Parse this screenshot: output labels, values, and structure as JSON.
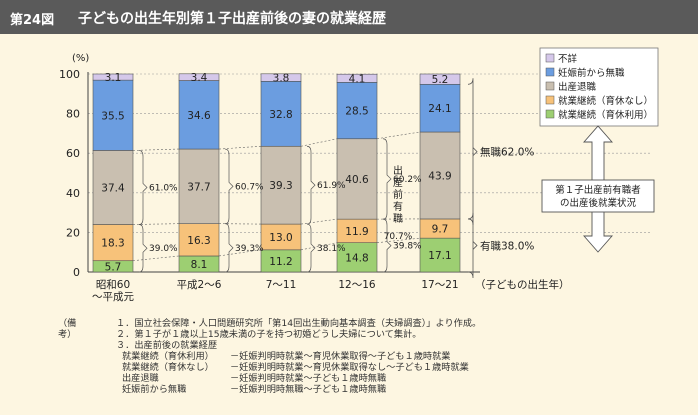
{
  "header": {
    "figure_tag": "第24図",
    "title": "子どもの出生年別第１子出産前後の妻の就業経歴"
  },
  "chart_data": {
    "type": "bar",
    "stacked": true,
    "y_unit_label": "(%)",
    "ylim": [
      0,
      100
    ],
    "yticks": [
      0,
      20,
      40,
      60,
      80,
      100
    ],
    "x_axis_label": "（子どもの出生年）",
    "categories": [
      "昭和60\n〜平成元",
      "平成2〜6",
      "7〜11",
      "12〜16",
      "17〜21"
    ],
    "series": [
      {
        "name": "就業継続（育休利用）",
        "color": "#9dcf72",
        "values": [
          5.7,
          8.1,
          11.2,
          14.8,
          17.1
        ]
      },
      {
        "name": "就業継続（育休なし）",
        "color": "#f7c27a",
        "values": [
          18.3,
          16.3,
          13.0,
          11.9,
          9.7
        ]
      },
      {
        "name": "出産退職",
        "color": "#c9bfb0",
        "values": [
          37.4,
          37.7,
          39.3,
          40.6,
          43.9
        ]
      },
      {
        "name": "妊娠前から無職",
        "color": "#6b9de0",
        "values": [
          35.5,
          34.6,
          32.8,
          28.5,
          24.1
        ]
      },
      {
        "name": "不詳",
        "color": "#d5c8ea",
        "values": [
          3.1,
          3.4,
          3.8,
          4.1,
          5.2
        ]
      }
    ],
    "legend_order": [
      "不詳",
      "妊娠前から無職",
      "出産退職",
      "就業継続（育休なし）",
      "就業継続（育休利用）"
    ],
    "legend_position": "top-right",
    "brace_labels": [
      {
        "upper": "61.0%",
        "lower": "39.0%"
      },
      {
        "upper": "60.7%",
        "lower": "39.3%"
      },
      {
        "upper": "61.9%",
        "lower": "38.1%"
      },
      {
        "upper": "60.2%",
        "lower": "39.8%"
      }
    ],
    "bar4_side_label": "出産前有職",
    "bar4_side_pct": "70.7%",
    "right_braces": [
      {
        "label": "無職62.0%"
      },
      {
        "label": "有職38.0%"
      }
    ],
    "arrow_box_label": "第１子出産前有職者の出産後就業状況"
  },
  "notes": {
    "header": "（備考）",
    "items": [
      "１．国立社会保障・人口問題研究所「第14回出生動向基本調査（夫婦調査）」より作成。",
      "２．第１子が１歳以上15歳未満の子を持つ初婚どうし夫婦について集計。",
      "３．出産前後の就業経歴"
    ],
    "definitions": [
      {
        "label": "就業継続（育休利用）",
        "text": "－妊娠判明時就業～育児休業取得～子ども１歳時就業"
      },
      {
        "label": "就業継続（育休なし）",
        "text": "－妊娠判明時就業～育児休業取得なし～子ども１歳時就業"
      },
      {
        "label": "出産退職",
        "text": "－妊娠判明時就業～子ども１歳時無職"
      },
      {
        "label": "妊娠前から無職",
        "text": "－妊娠判明時無職～子ども１歳時無職"
      }
    ]
  }
}
